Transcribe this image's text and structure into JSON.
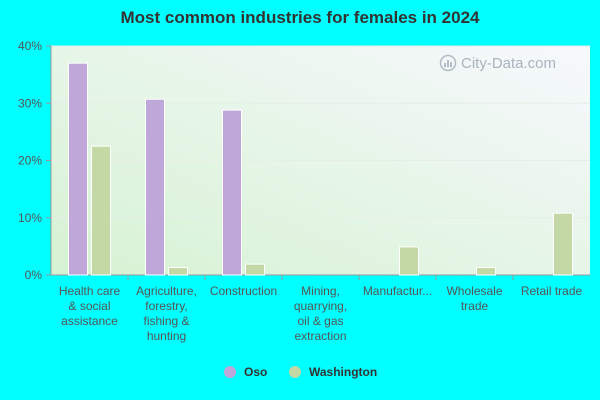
{
  "chart_data": {
    "type": "bar",
    "title": "Most common industries for females in 2024",
    "categories": [
      [
        "Health care",
        "& social",
        "assistance"
      ],
      [
        "Agriculture,",
        "forestry,",
        "fishing &",
        "hunting"
      ],
      [
        "Construction"
      ],
      [
        "Mining,",
        "quarrying,",
        "oil & gas",
        "extraction"
      ],
      [
        "Manufactur..."
      ],
      [
        "Wholesale",
        "trade"
      ],
      [
        "Retail trade"
      ]
    ],
    "series": [
      {
        "name": "Oso",
        "color": "#bfa8d9",
        "values": [
          37.0,
          30.7,
          28.8,
          0,
          0,
          0,
          0
        ]
      },
      {
        "name": "Washington",
        "color": "#c4d8a5",
        "values": [
          22.5,
          1.3,
          1.9,
          0,
          4.9,
          1.3,
          10.8
        ]
      }
    ],
    "ylim": [
      0,
      40
    ],
    "yticks": [
      "0%",
      "10%",
      "20%",
      "30%",
      "40%"
    ],
    "ytick_values": [
      0,
      10,
      20,
      30,
      40
    ],
    "xlabel": "",
    "ylabel": "",
    "grid": true,
    "legend_position": "bottom-center"
  },
  "watermark": "City-Data.com"
}
